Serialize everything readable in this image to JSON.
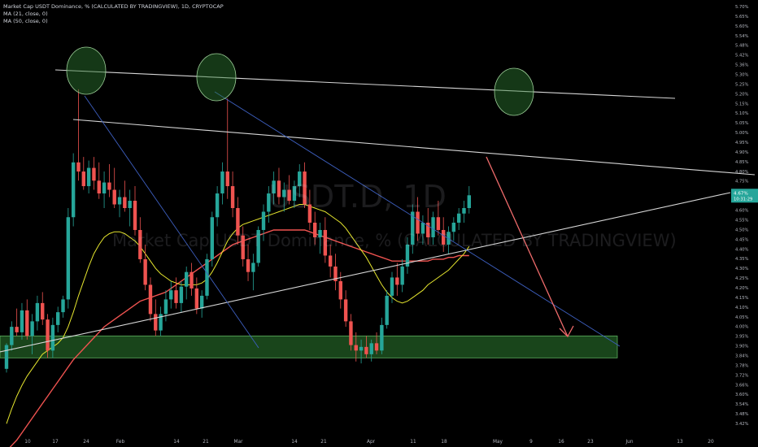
{
  "header": {
    "title": "Market Cap USDT Dominance, % (CALCULATED BY TRADINGVIEW), 1D, CRYPTOCAP",
    "ma1": "MA (21, close, 0)",
    "ma2": "MA (50, close, 0)"
  },
  "watermark": {
    "symbol": "USDT.D, 1D",
    "name": "Market Cap USDT Dominance, % (CALCULATED BY TRADINGVIEW)"
  },
  "price_badge": {
    "price": "4.67%",
    "countdown": "10:31:29",
    "color": "#26a69a"
  },
  "colors": {
    "up": "#26a69a",
    "down": "#ef5350",
    "ma21": "#e6e62e",
    "ma50": "#ef5350",
    "trend_white": "#d6d6d6",
    "trend_blue": "#3d5fbf",
    "zone": "#2e7d32",
    "arrow": "#ef6b6b"
  },
  "chart_data": {
    "type": "candlestick",
    "ylim": [
      3.39,
      5.73
    ],
    "y_ticks": [
      "5.70%",
      "5.65%",
      "5.60%",
      "5.54%",
      "5.48%",
      "5.42%",
      "5.36%",
      "5.30%",
      "5.25%",
      "5.20%",
      "5.15%",
      "5.10%",
      "5.05%",
      "5.00%",
      "4.95%",
      "4.90%",
      "4.85%",
      "4.80%",
      "4.75%",
      "4.70%",
      "4.65%",
      "4.60%",
      "4.55%",
      "4.50%",
      "4.45%",
      "4.40%",
      "4.35%",
      "4.30%",
      "4.25%",
      "4.20%",
      "4.15%",
      "4.10%",
      "4.05%",
      "4.00%",
      "3.95%",
      "3.90%",
      "3.84%",
      "3.78%",
      "3.72%",
      "3.66%",
      "3.60%",
      "3.54%",
      "3.48%",
      "3.42%"
    ],
    "x_labels": [
      "10",
      "17",
      "24",
      "Feb",
      "14",
      "21",
      "Mar",
      "14",
      "21",
      "Apr",
      "11",
      "18",
      "May",
      "9",
      "16",
      "23",
      "Jun",
      "13",
      "20"
    ],
    "candles": [
      [
        3.72,
        3.86,
        3.7,
        3.85
      ],
      [
        3.85,
        3.98,
        3.82,
        3.95
      ],
      [
        3.95,
        4.05,
        3.9,
        3.92
      ],
      [
        3.92,
        4.08,
        3.88,
        4.04
      ],
      [
        4.04,
        4.1,
        3.88,
        3.9
      ],
      [
        3.9,
        4.02,
        3.8,
        3.98
      ],
      [
        3.98,
        4.12,
        3.93,
        4.08
      ],
      [
        4.08,
        4.14,
        3.96,
        3.99
      ],
      [
        3.99,
        4.02,
        3.78,
        3.82
      ],
      [
        3.82,
        4.0,
        3.78,
        3.96
      ],
      [
        3.96,
        4.06,
        3.92,
        4.03
      ],
      [
        4.03,
        4.12,
        4.0,
        4.1
      ],
      [
        4.1,
        4.6,
        4.05,
        4.55
      ],
      [
        4.55,
        4.9,
        4.5,
        4.85
      ],
      [
        4.85,
        5.25,
        4.75,
        4.8
      ],
      [
        4.8,
        4.88,
        4.7,
        4.72
      ],
      [
        4.72,
        4.86,
        4.68,
        4.82
      ],
      [
        4.82,
        4.88,
        4.7,
        4.75
      ],
      [
        4.75,
        4.85,
        4.65,
        4.68
      ],
      [
        4.68,
        4.8,
        4.6,
        4.74
      ],
      [
        4.74,
        4.84,
        4.66,
        4.7
      ],
      [
        4.7,
        4.82,
        4.6,
        4.62
      ],
      [
        4.62,
        4.7,
        4.55,
        4.66
      ],
      [
        4.66,
        4.75,
        4.58,
        4.6
      ],
      [
        4.6,
        4.7,
        4.5,
        4.64
      ],
      [
        4.64,
        4.72,
        4.45,
        4.48
      ],
      [
        4.48,
        4.55,
        4.3,
        4.32
      ],
      [
        4.32,
        4.4,
        4.15,
        4.18
      ],
      [
        4.18,
        4.22,
        3.98,
        4.02
      ],
      [
        4.02,
        4.1,
        3.9,
        3.93
      ],
      [
        3.93,
        4.06,
        3.9,
        4.02
      ],
      [
        4.02,
        4.15,
        3.98,
        4.1
      ],
      [
        4.1,
        4.2,
        4.05,
        4.15
      ],
      [
        4.15,
        4.22,
        4.05,
        4.08
      ],
      [
        4.08,
        4.2,
        4.03,
        4.17
      ],
      [
        4.17,
        4.28,
        4.1,
        4.25
      ],
      [
        4.25,
        4.3,
        4.12,
        4.16
      ],
      [
        4.16,
        4.22,
        4.02,
        4.05
      ],
      [
        4.05,
        4.15,
        4.0,
        4.12
      ],
      [
        4.12,
        4.35,
        4.1,
        4.32
      ],
      [
        4.32,
        4.58,
        4.28,
        4.55
      ],
      [
        4.55,
        4.72,
        4.5,
        4.68
      ],
      [
        4.68,
        4.85,
        4.62,
        4.8
      ],
      [
        4.8,
        5.2,
        4.65,
        4.72
      ],
      [
        4.72,
        4.8,
        4.55,
        4.6
      ],
      [
        4.6,
        4.66,
        4.4,
        4.45
      ],
      [
        4.45,
        4.5,
        4.28,
        4.32
      ],
      [
        4.32,
        4.4,
        4.2,
        4.25
      ],
      [
        4.25,
        4.35,
        4.15,
        4.3
      ],
      [
        4.3,
        4.5,
        4.28,
        4.48
      ],
      [
        4.48,
        4.62,
        4.42,
        4.58
      ],
      [
        4.58,
        4.72,
        4.52,
        4.68
      ],
      [
        4.68,
        4.8,
        4.62,
        4.75
      ],
      [
        4.75,
        4.82,
        4.62,
        4.66
      ],
      [
        4.66,
        4.74,
        4.58,
        4.7
      ],
      [
        4.7,
        4.78,
        4.62,
        4.64
      ],
      [
        4.64,
        4.75,
        4.6,
        4.72
      ],
      [
        4.72,
        4.84,
        4.66,
        4.8
      ],
      [
        4.8,
        4.85,
        4.6,
        4.62
      ],
      [
        4.62,
        4.7,
        4.48,
        4.52
      ],
      [
        4.52,
        4.58,
        4.4,
        4.44
      ],
      [
        4.44,
        4.52,
        4.35,
        4.48
      ],
      [
        4.48,
        4.55,
        4.3,
        4.34
      ],
      [
        4.34,
        4.4,
        4.22,
        4.28
      ],
      [
        4.28,
        4.35,
        4.15,
        4.2
      ],
      [
        4.2,
        4.25,
        4.05,
        4.1
      ],
      [
        4.1,
        4.15,
        3.95,
        3.98
      ],
      [
        3.98,
        4.02,
        3.82,
        3.85
      ],
      [
        3.85,
        3.92,
        3.76,
        3.82
      ],
      [
        3.82,
        3.88,
        3.75,
        3.84
      ],
      [
        3.84,
        3.9,
        3.78,
        3.8
      ],
      [
        3.8,
        3.88,
        3.76,
        3.86
      ],
      [
        3.86,
        3.92,
        3.8,
        3.82
      ],
      [
        3.82,
        4.0,
        3.8,
        3.96
      ],
      [
        3.96,
        4.15,
        3.94,
        4.12
      ],
      [
        4.12,
        4.25,
        4.08,
        4.22
      ],
      [
        4.22,
        4.3,
        4.12,
        4.18
      ],
      [
        4.18,
        4.32,
        4.14,
        4.28
      ],
      [
        4.28,
        4.44,
        4.24,
        4.4
      ],
      [
        4.4,
        4.62,
        4.35,
        4.58
      ],
      [
        4.58,
        4.66,
        4.42,
        4.46
      ],
      [
        4.46,
        4.56,
        4.4,
        4.52
      ],
      [
        4.52,
        4.6,
        4.4,
        4.44
      ],
      [
        4.44,
        4.58,
        4.4,
        4.55
      ],
      [
        4.55,
        4.64,
        4.45,
        4.48
      ],
      [
        4.48,
        4.55,
        4.36,
        4.4
      ],
      [
        4.4,
        4.5,
        4.35,
        4.47
      ],
      [
        4.47,
        4.55,
        4.42,
        4.52
      ],
      [
        4.52,
        4.6,
        4.48,
        4.57
      ],
      [
        4.57,
        4.64,
        4.52,
        4.6
      ],
      [
        4.6,
        4.72,
        4.57,
        4.67
      ]
    ],
    "ma21": [
      3.42,
      3.5,
      3.57,
      3.63,
      3.68,
      3.72,
      3.76,
      3.8,
      3.82,
      3.84,
      3.86,
      3.89,
      3.95,
      4.03,
      4.12,
      4.2,
      4.28,
      4.35,
      4.4,
      4.44,
      4.46,
      4.47,
      4.47,
      4.46,
      4.44,
      4.42,
      4.39,
      4.35,
      4.31,
      4.27,
      4.24,
      4.22,
      4.2,
      4.19,
      4.18,
      4.18,
      4.18,
      4.18,
      4.19,
      4.21,
      4.25,
      4.3,
      4.36,
      4.42,
      4.46,
      4.49,
      4.51,
      4.52,
      4.53,
      4.54,
      4.55,
      4.56,
      4.57,
      4.58,
      4.59,
      4.6,
      4.61,
      4.62,
      4.62,
      4.61,
      4.6,
      4.59,
      4.58,
      4.56,
      4.54,
      4.52,
      4.49,
      4.45,
      4.41,
      4.37,
      4.33,
      4.28,
      4.23,
      4.18,
      4.14,
      4.11,
      4.09,
      4.08,
      4.09,
      4.11,
      4.13,
      4.15,
      4.18,
      4.2,
      4.22,
      4.24,
      4.26,
      4.29,
      4.32,
      4.35,
      4.39
    ],
    "ma50": [
      3.27,
      3.3,
      3.33,
      3.37,
      3.41,
      3.45,
      3.49,
      3.53,
      3.57,
      3.61,
      3.65,
      3.69,
      3.73,
      3.77,
      3.8,
      3.83,
      3.86,
      3.89,
      3.92,
      3.95,
      3.97,
      3.99,
      4.01,
      4.03,
      4.05,
      4.07,
      4.09,
      4.1,
      4.11,
      4.12,
      4.13,
      4.14,
      4.16,
      4.18,
      4.2,
      4.22,
      4.24,
      4.26,
      4.28,
      4.3,
      4.32,
      4.34,
      4.36,
      4.38,
      4.4,
      4.41,
      4.42,
      4.43,
      4.44,
      4.45,
      4.46,
      4.47,
      4.48,
      4.48,
      4.48,
      4.48,
      4.48,
      4.48,
      4.48,
      4.47,
      4.46,
      4.45,
      4.44,
      4.43,
      4.42,
      4.41,
      4.4,
      4.39,
      4.38,
      4.37,
      4.36,
      4.35,
      4.34,
      4.33,
      4.32,
      4.31,
      4.31,
      4.31,
      4.31,
      4.31,
      4.31,
      4.31,
      4.31,
      4.32,
      4.32,
      4.32,
      4.33,
      4.33,
      4.34,
      4.34,
      4.34
    ]
  }
}
